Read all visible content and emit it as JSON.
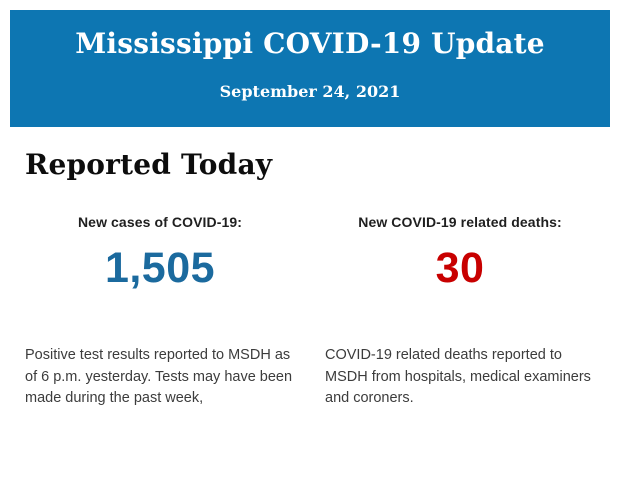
{
  "header": {
    "title": "Mississippi COVID-19 Update",
    "date": "September 24, 2021",
    "background_color": "#0d76b2",
    "text_color": "#ffffff"
  },
  "section": {
    "heading": "Reported Today"
  },
  "stats": {
    "cases": {
      "label": "New cases of COVID-19:",
      "value": "1,505",
      "value_color": "#1b6a9e",
      "description": "Positive test results reported to MSDH as of 6 p.m. yesterday. Tests may have been made during the past week,"
    },
    "deaths": {
      "label": "New COVID-19 related deaths:",
      "value": "30",
      "value_color": "#c80000",
      "description": "COVID-19 related deaths reported to MSDH from hospitals, medical examiners and coroners."
    }
  }
}
